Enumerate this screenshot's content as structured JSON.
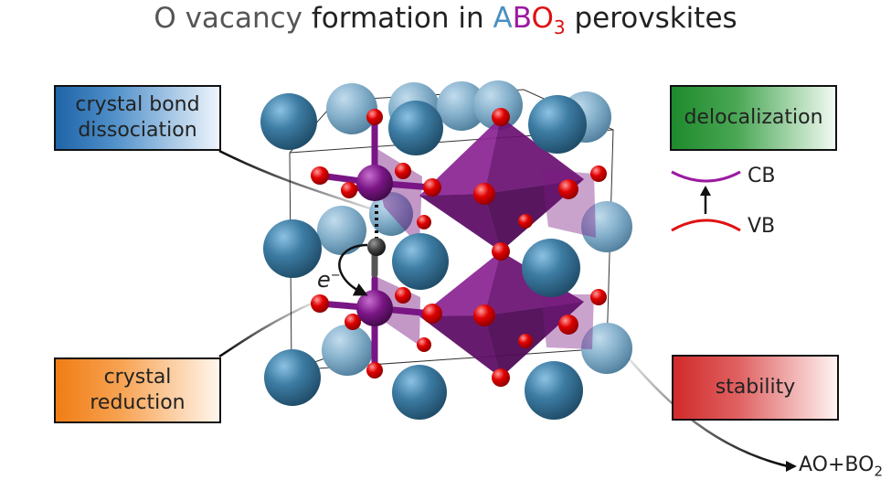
{
  "title": {
    "part1": "O vacancy",
    "part2": " formation in ",
    "a": "A",
    "b": "B",
    "o": "O",
    "sub3": "3",
    "part3": " perovskites",
    "colors": {
      "A": "#4a90c2",
      "B": "#9b1aa0",
      "O": "#e01010"
    }
  },
  "boxes": {
    "bond": [
      "crystal bond",
      "dissociation"
    ],
    "reduction": [
      "crystal",
      "reduction"
    ],
    "delocalization": "delocalization",
    "stability": "stability"
  },
  "bands": {
    "cb": "CB",
    "vb": "VB"
  },
  "electron_label": {
    "e": "e",
    "sup": "−"
  },
  "products": {
    "ao": "AO+BO",
    "sub": "2"
  },
  "colors": {
    "a_site": "#3d7ca3",
    "b_site": "#7a1585",
    "oxygen": "#d40000",
    "octahedron": "#7a1a82",
    "vacancy": "#333333",
    "cb_line": "#9b1aa0",
    "vb_line": "#e01010"
  }
}
